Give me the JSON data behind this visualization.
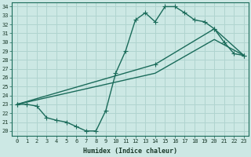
{
  "xlabel": "Humidex (Indice chaleur)",
  "bg_color": "#cce8e4",
  "grid_color": "#b0d4cf",
  "line_color": "#1a6b5a",
  "xlim": [
    -0.5,
    23.5
  ],
  "ylim": [
    19.5,
    34.5
  ],
  "xticks": [
    0,
    1,
    2,
    3,
    4,
    5,
    6,
    7,
    8,
    9,
    10,
    11,
    12,
    13,
    14,
    15,
    16,
    17,
    18,
    19,
    20,
    21,
    22,
    23
  ],
  "yticks": [
    20,
    21,
    22,
    23,
    24,
    25,
    26,
    27,
    28,
    29,
    30,
    31,
    32,
    33,
    34
  ],
  "line1_x": [
    0,
    1,
    2,
    3,
    4,
    5,
    6,
    7,
    8,
    9,
    10,
    11,
    12,
    13,
    14,
    15,
    16,
    17,
    18,
    19,
    20,
    21,
    22,
    23
  ],
  "line1_y": [
    23.0,
    23.0,
    22.8,
    21.5,
    21.2,
    21.0,
    20.5,
    20.0,
    20.0,
    22.3,
    26.5,
    29.0,
    32.5,
    33.3,
    32.3,
    34.0,
    34.0,
    33.3,
    32.5,
    32.3,
    31.5,
    30.0,
    28.7,
    28.5
  ],
  "line2_x": [
    0,
    14,
    20,
    23
  ],
  "line2_y": [
    23.0,
    27.5,
    31.5,
    28.5
  ],
  "line3_x": [
    0,
    14,
    20,
    23
  ],
  "line3_y": [
    23.0,
    26.5,
    30.3,
    28.5
  ],
  "marker_style": "+",
  "marker_size": 4,
  "line_width": 1.0,
  "tick_fontsize": 5,
  "label_fontsize": 6
}
